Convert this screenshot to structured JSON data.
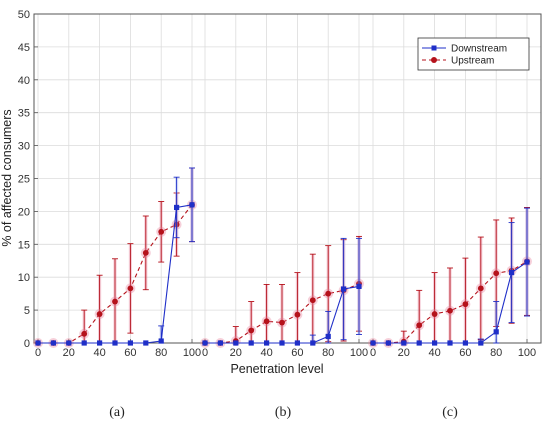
{
  "chart_data": {
    "type": "line",
    "xlabel": "Penetration level",
    "ylabel": "% of affected consumers",
    "ylim": [
      0,
      50
    ],
    "yticks": [
      "0",
      "5",
      "10",
      "15",
      "20",
      "25",
      "30",
      "35",
      "40",
      "45",
      "50"
    ],
    "grid": true,
    "legend_position": "top-right",
    "panels": [
      {
        "label": "(a)",
        "xticks": [
          "0",
          "20",
          "40",
          "60",
          "80",
          "100"
        ],
        "x": [
          0,
          10,
          20,
          30,
          40,
          50,
          60,
          70,
          80,
          90,
          100
        ],
        "series": [
          {
            "name": "Downstream",
            "color": "#1f2fc8",
            "marker": "square",
            "line": "solid",
            "values": [
              0,
              0,
              0,
              0,
              0,
              0,
              0,
              0,
              0.3,
              20.6,
              21.0
            ],
            "errors": [
              0,
              0,
              0,
              0,
              0,
              0,
              0,
              0,
              2.3,
              4.6,
              5.6
            ]
          },
          {
            "name": "Upstream",
            "color": "#b5121b",
            "marker": "circle",
            "line": "dashed",
            "values": [
              0,
              0,
              0,
              1.4,
              4.4,
              6.3,
              8.3,
              13.7,
              16.9,
              18.0,
              21.0
            ],
            "errors": [
              0,
              0,
              0,
              3.6,
              5.9,
              6.5,
              6.8,
              5.6,
              4.6,
              4.8,
              5.6
            ]
          }
        ]
      },
      {
        "label": "(b)",
        "xticks": [
          "0",
          "20",
          "40",
          "60",
          "80",
          "100"
        ],
        "x": [
          0,
          10,
          20,
          30,
          40,
          50,
          60,
          70,
          80,
          90,
          100
        ],
        "series": [
          {
            "name": "Downstream",
            "color": "#1f2fc8",
            "marker": "square",
            "line": "solid",
            "values": [
              0,
              0,
              0,
              0,
              0,
              0,
              0,
              0,
              1.0,
              8.2,
              8.6
            ],
            "errors": [
              0,
              0,
              0,
              0,
              0,
              0,
              0,
              1.2,
              3.8,
              7.7,
              7.3
            ]
          },
          {
            "name": "Upstream",
            "color": "#b5121b",
            "marker": "circle",
            "line": "dashed",
            "values": [
              0,
              0,
              0.3,
              1.9,
              3.3,
              3.1,
              4.3,
              6.5,
              7.5,
              8.0,
              9.0
            ],
            "errors": [
              0,
              0,
              2.2,
              4.4,
              5.6,
              5.8,
              6.4,
              7.0,
              7.3,
              7.7,
              7.2
            ]
          }
        ]
      },
      {
        "label": "(c)",
        "xticks": [
          "0",
          "20",
          "40",
          "60",
          "80",
          "100"
        ],
        "x": [
          0,
          10,
          20,
          30,
          40,
          50,
          60,
          70,
          80,
          90,
          100
        ],
        "series": [
          {
            "name": "Downstream",
            "color": "#1f2fc8",
            "marker": "square",
            "line": "solid",
            "values": [
              0,
              0,
              0,
              0,
              0,
              0,
              0,
              0,
              1.7,
              10.7,
              12.3
            ],
            "errors": [
              0,
              0,
              0,
              0,
              0,
              0,
              0,
              0.6,
              4.6,
              7.6,
              8.2
            ]
          },
          {
            "name": "Upstream",
            "color": "#b5121b",
            "marker": "circle",
            "line": "dashed",
            "values": [
              0,
              0,
              0.2,
              2.7,
              4.4,
              4.9,
              5.9,
              8.3,
              10.6,
              11.0,
              12.4
            ],
            "errors": [
              0,
              0,
              1.6,
              5.3,
              6.3,
              6.5,
              7.0,
              7.8,
              8.1,
              8.0,
              8.2
            ]
          }
        ]
      }
    ]
  }
}
